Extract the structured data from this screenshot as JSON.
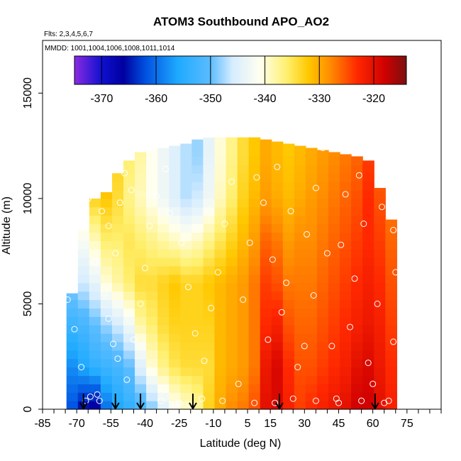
{
  "chart_data": {
    "type": "heatmap",
    "title": "ATOM3 Southbound APO_AO2",
    "flights_label": "Flts: 2,3,4,5,6,7",
    "dates_label": "MMDD: 1001,1004,1006,1008,1011,1014",
    "xlabel": "Latitude (deg N)",
    "ylabel": "Altitude (m)",
    "xlim": [
      -85,
      90
    ],
    "ylim": [
      0,
      17500
    ],
    "x_ticks": [
      -85,
      -70,
      -55,
      -40,
      -25,
      -10,
      5,
      15,
      30,
      45,
      60,
      75
    ],
    "y_ticks": [
      0,
      5000,
      10000,
      15000
    ],
    "colorbar": {
      "min": -375,
      "max": -314,
      "ticks": [
        -370,
        -360,
        -350,
        -340,
        -330,
        -320
      ],
      "stops": [
        {
          "v": -375,
          "color": "#8a2be2"
        },
        {
          "v": -370,
          "color": "#1010d0"
        },
        {
          "v": -366,
          "color": "#0000a0"
        },
        {
          "v": -362,
          "color": "#0050e0"
        },
        {
          "v": -356,
          "color": "#1eaaff"
        },
        {
          "v": -350,
          "color": "#5bbcff"
        },
        {
          "v": -346,
          "color": "#d6ecff"
        },
        {
          "v": -341,
          "color": "#fffff0"
        },
        {
          "v": -336,
          "color": "#fff070"
        },
        {
          "v": -332,
          "color": "#ffc800"
        },
        {
          "v": -328,
          "color": "#ff8c00"
        },
        {
          "v": -323,
          "color": "#ff2800"
        },
        {
          "v": -318,
          "color": "#d00000"
        },
        {
          "v": -314,
          "color": "#7a1010"
        }
      ]
    },
    "field": {
      "lat_start": -82,
      "lat_step": 5,
      "lat_max": 71,
      "lat": [
        -82,
        -77,
        -72,
        -67,
        -62,
        -57,
        -52,
        -47,
        -42,
        -37,
        -32,
        -27,
        -22,
        -17,
        -12,
        -7,
        -2,
        3,
        8,
        13,
        18,
        23,
        28,
        33,
        38,
        43,
        48,
        53,
        58,
        63,
        68
      ],
      "alt": [
        0,
        2000,
        4000,
        6000,
        8000,
        10000,
        12000
      ],
      "top_alt": [
        0,
        0,
        5500,
        8500,
        10000,
        10300,
        11200,
        11800,
        12200,
        12300,
        12400,
        12500,
        12600,
        12800,
        12900,
        12900,
        12900,
        12900,
        12900,
        12800,
        12700,
        12600,
        12500,
        12400,
        12300,
        12200,
        12100,
        12000,
        11800,
        10500,
        9000
      ],
      "values": [
        [
          -362,
          -362,
          -362,
          -362,
          -362,
          -362,
          -362
        ],
        [
          -362,
          -360,
          -356,
          -350,
          -348,
          -346,
          -346
        ],
        [
          -362,
          -358,
          -353,
          -348,
          -344,
          -342,
          -342
        ],
        [
          -366,
          -356,
          -352,
          -346,
          -342,
          -336,
          -334
        ],
        [
          -368,
          -354,
          -350,
          -344,
          -339,
          -333,
          -331
        ],
        [
          -360,
          -353,
          -348,
          -340,
          -336,
          -332,
          -330
        ],
        [
          -356,
          -352,
          -346,
          -338,
          -336,
          -334,
          -333
        ],
        [
          -354,
          -350,
          -343,
          -336,
          -335,
          -337,
          -336
        ],
        [
          -352,
          -345,
          -338,
          -334,
          -336,
          -339,
          -338
        ],
        [
          -349,
          -340,
          -336,
          -334,
          -337,
          -341,
          -341
        ],
        [
          -345,
          -337,
          -334,
          -333,
          -338,
          -343,
          -343
        ],
        [
          -342,
          -335,
          -333,
          -332,
          -339,
          -345,
          -345
        ],
        [
          -340,
          -334,
          -333,
          -333,
          -340,
          -347,
          -347
        ],
        [
          -338,
          -334,
          -333,
          -333,
          -339,
          -346,
          -348
        ],
        [
          -333,
          -334,
          -333,
          -332,
          -337,
          -343,
          -344
        ],
        [
          -330,
          -331,
          -331,
          -331,
          -335,
          -339,
          -340
        ],
        [
          -328,
          -330,
          -330,
          -330,
          -333,
          -336,
          -337
        ],
        [
          -327,
          -329,
          -329,
          -329,
          -331,
          -333,
          -334
        ],
        [
          -325,
          -327,
          -327,
          -327,
          -329,
          -331,
          -332
        ],
        [
          -320,
          -321,
          -323,
          -324,
          -326,
          -329,
          -330
        ],
        [
          -319,
          -319,
          -322,
          -325,
          -327,
          -330,
          -331
        ],
        [
          -322,
          -323,
          -325,
          -327,
          -329,
          -331,
          -332
        ],
        [
          -324,
          -325,
          -326,
          -327,
          -328,
          -330,
          -331
        ],
        [
          -323,
          -325,
          -326,
          -327,
          -328,
          -329,
          -330
        ],
        [
          -322,
          -324,
          -325,
          -326,
          -327,
          -328,
          -329
        ],
        [
          -321,
          -323,
          -324,
          -325,
          -326,
          -327,
          -328
        ],
        [
          -320,
          -322,
          -323,
          -324,
          -325,
          -326,
          -327
        ],
        [
          -318,
          -320,
          -322,
          -323,
          -324,
          -325,
          -326
        ],
        [
          -318,
          -319,
          -321,
          -322,
          -323,
          -323,
          -324
        ],
        [
          -320,
          -321,
          -322,
          -323,
          -324,
          -325,
          -326
        ],
        [
          -322,
          -323,
          -324,
          -325,
          -326,
          -327,
          -328
        ]
      ]
    },
    "arrow_latitudes": [
      -67,
      -53,
      -42,
      -19,
      19,
      61
    ],
    "sample_points": [
      [
        -80,
        5300
      ],
      [
        -78,
        4400
      ],
      [
        -76,
        6200
      ],
      [
        -73,
        7200
      ],
      [
        -71,
        8400
      ],
      [
        -69,
        9800
      ],
      [
        -68,
        2000
      ],
      [
        -71,
        3800
      ],
      [
        -74,
        5200
      ],
      [
        -66,
        400
      ],
      [
        -64,
        600
      ],
      [
        -61,
        700
      ],
      [
        -59,
        9400
      ],
      [
        -56,
        8700
      ],
      [
        -53,
        7400
      ],
      [
        -51,
        9800
      ],
      [
        -49,
        11200
      ],
      [
        -46,
        10400
      ],
      [
        -62,
        7000
      ],
      [
        -58,
        5500
      ],
      [
        -56,
        4300
      ],
      [
        -54,
        3100
      ],
      [
        -52,
        2400
      ],
      [
        -48,
        1400
      ],
      [
        -45,
        3300
      ],
      [
        -42,
        5000
      ],
      [
        -40,
        6700
      ],
      [
        -38,
        8700
      ],
      [
        -35,
        10100
      ],
      [
        -31,
        11400
      ],
      [
        -29,
        9300
      ],
      [
        -24,
        7900
      ],
      [
        -21,
        5800
      ],
      [
        -18,
        3600
      ],
      [
        -14,
        2300
      ],
      [
        -11,
        4800
      ],
      [
        -8,
        6500
      ],
      [
        -5,
        8800
      ],
      [
        -2,
        10800
      ],
      [
        1,
        1200
      ],
      [
        3,
        5200
      ],
      [
        6,
        7900
      ],
      [
        9,
        11000
      ],
      [
        12,
        9800
      ],
      [
        14,
        3300
      ],
      [
        16,
        7100
      ],
      [
        18,
        11500
      ],
      [
        20,
        4600
      ],
      [
        22,
        6000
      ],
      [
        24,
        9400
      ],
      [
        27,
        2000
      ],
      [
        30,
        3000
      ],
      [
        31,
        8300
      ],
      [
        34,
        5400
      ],
      [
        35,
        10500
      ],
      [
        38,
        12400
      ],
      [
        40,
        7400
      ],
      [
        42,
        3000
      ],
      [
        44,
        500
      ],
      [
        46,
        7800
      ],
      [
        48,
        10200
      ],
      [
        50,
        3900
      ],
      [
        52,
        6200
      ],
      [
        54,
        11100
      ],
      [
        56,
        8800
      ],
      [
        58,
        2200
      ],
      [
        60,
        1200
      ],
      [
        62,
        5000
      ],
      [
        64,
        9600
      ],
      [
        66,
        11900
      ],
      [
        69,
        3200
      ],
      [
        70,
        6500
      ],
      [
        69,
        8500
      ],
      [
        67,
        400
      ],
      [
        -65,
        10000
      ],
      [
        -60,
        400
      ],
      [
        -33,
        400
      ],
      [
        -25,
        300
      ],
      [
        -15,
        500
      ],
      [
        -6,
        400
      ],
      [
        8,
        300
      ],
      [
        17,
        300
      ],
      [
        25,
        500
      ],
      [
        35,
        400
      ],
      [
        45,
        300
      ],
      [
        55,
        400
      ],
      [
        65,
        300
      ]
    ]
  }
}
